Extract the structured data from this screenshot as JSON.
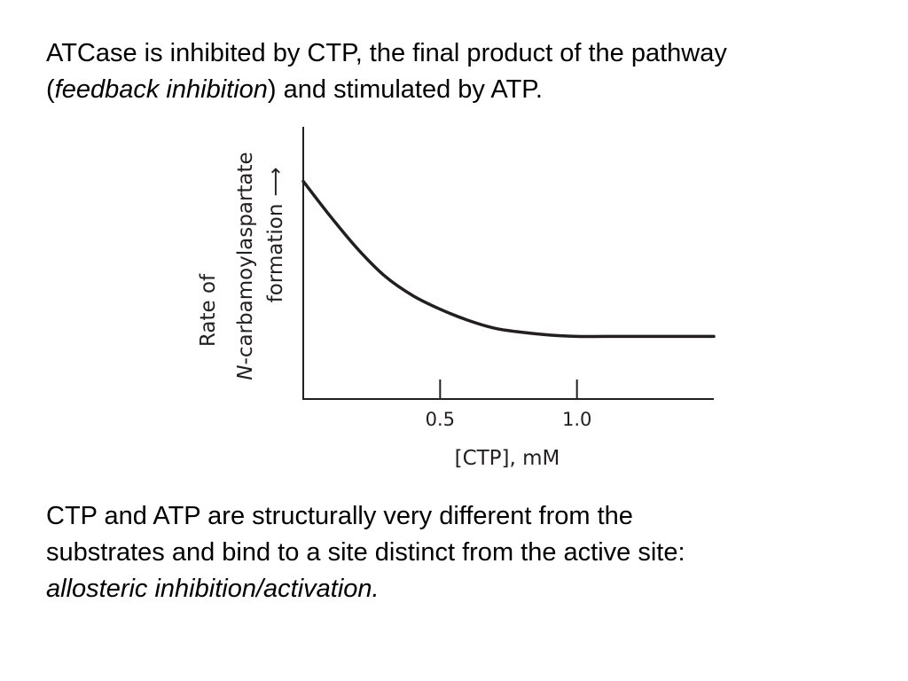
{
  "intro": {
    "line1": "ATCase is inhibited by CTP, the final product of the pathway",
    "line2_open": "(",
    "line2_italic": "feedback inhibition",
    "line2_rest": ") and stimulated by ATP."
  },
  "outro": {
    "line1": "CTP and ATP are structurally very different from the",
    "line2": "substrates and bind to a site distinct from the active site:",
    "line3_italic": "allosteric inhibition/activation."
  },
  "chart_data": {
    "type": "line",
    "xlabel": "[CTP], mM",
    "ylabel": {
      "line1": "Rate of",
      "line2_italic": "N",
      "line2_rest": "-carbamoylaspartate",
      "line3": "formation",
      "arrow": "⟶"
    },
    "x_ticks": [
      0.5,
      1.0
    ],
    "x_tick_labels": [
      "0.5",
      "1.0"
    ],
    "xlim": [
      0,
      1.5
    ],
    "ylim": [
      0,
      1
    ],
    "grid": false,
    "line_color": "#231f20",
    "series": [
      {
        "x": [
          0.0,
          0.1,
          0.2,
          0.3,
          0.4,
          0.5,
          0.6,
          0.7,
          0.8,
          0.9,
          1.0,
          1.1,
          1.2,
          1.3,
          1.4,
          1.5
        ],
        "y": [
          0.8,
          0.67,
          0.55,
          0.45,
          0.38,
          0.33,
          0.29,
          0.26,
          0.245,
          0.235,
          0.23,
          0.23,
          0.23,
          0.23,
          0.23,
          0.23
        ]
      }
    ]
  }
}
